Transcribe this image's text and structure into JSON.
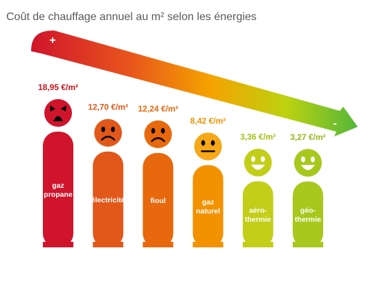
{
  "chart_data": {
    "type": "bar",
    "title": "Coût de chauffage annuel au m² selon les énergies",
    "unit": "€/m²",
    "arrow": {
      "start_sign": "+",
      "end_sign": "-"
    },
    "ylim": [
      0,
      20
    ],
    "categories": [
      [
        "gaz",
        "propane"
      ],
      [
        "électricité"
      ],
      [
        "fioul"
      ],
      [
        "gaz",
        "naturel"
      ],
      [
        "aéro-",
        "thermie"
      ],
      [
        "géo-",
        "thermie"
      ]
    ],
    "value_labels": [
      "18,95 €/m²",
      "12,70 €/m²",
      "12,24 €/m²",
      "8,42 €/m²",
      "3,36 €/m²",
      "3,27 €/m²"
    ],
    "values": [
      18.95,
      12.7,
      12.24,
      8.42,
      3.36,
      3.27
    ],
    "moods": [
      "angry",
      "sad",
      "sad",
      "neutral",
      "happy",
      "happy"
    ],
    "colors": [
      "#d0142c",
      "#e1581a",
      "#e8680d",
      "#f29200",
      "#c3ce18",
      "#a8c81d"
    ],
    "face_colors": [
      "#d0142c",
      "#e1581a",
      "#e8680d",
      "#f6a81a",
      "#c3ce18",
      "#a8c81d"
    ],
    "value_colors": [
      "#c4161c",
      "#e1581a",
      "#e8680d",
      "#f29200",
      "#a8bf14",
      "#9ab61a"
    ]
  }
}
